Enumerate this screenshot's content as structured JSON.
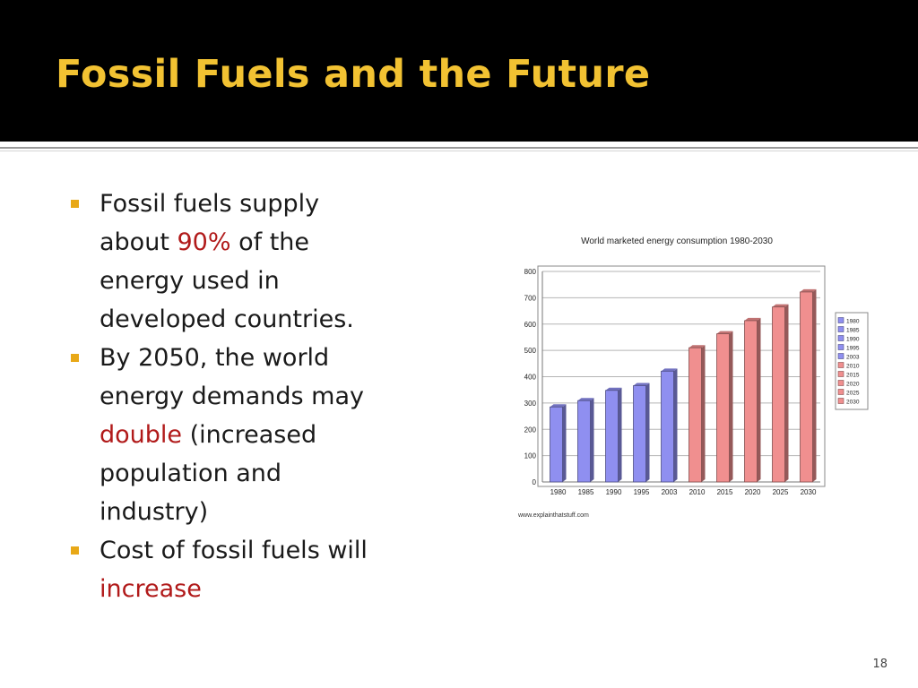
{
  "slide": {
    "title": "Fossil Fuels and the Future",
    "page_number": "18",
    "colors": {
      "title": "#f2c232",
      "highlight": "#b11a1a",
      "bullet_marker": "#e8a817"
    }
  },
  "bullets": [
    {
      "lines": [
        {
          "segments": [
            {
              "text": "Fossil fuels supply"
            }
          ]
        },
        {
          "segments": [
            {
              "text": "about "
            },
            {
              "text": "90%",
              "highlight": true
            },
            {
              "text": " of the"
            }
          ]
        },
        {
          "segments": [
            {
              "text": "energy used in"
            }
          ]
        },
        {
          "segments": [
            {
              "text": "developed countries."
            }
          ]
        }
      ]
    },
    {
      "lines": [
        {
          "segments": [
            {
              "text": "By 2050, the world"
            }
          ]
        },
        {
          "segments": [
            {
              "text": "energy demands may"
            }
          ]
        },
        {
          "segments": [
            {
              "text": "double",
              "highlight": true
            },
            {
              "text": " (increased"
            }
          ]
        },
        {
          "segments": [
            {
              "text": "population and"
            }
          ]
        },
        {
          "segments": [
            {
              "text": "industry)"
            }
          ]
        }
      ]
    },
    {
      "lines": [
        {
          "segments": [
            {
              "text": "Cost of fossil fuels will"
            }
          ]
        },
        {
          "segments": [
            {
              "text": "increase",
              "highlight": true
            }
          ]
        }
      ]
    }
  ],
  "chart_data": {
    "type": "bar",
    "title": "World marketed energy consumption 1980-2030",
    "categories": [
      "1980",
      "1985",
      "1990",
      "1995",
      "2003",
      "2010",
      "2015",
      "2020",
      "2025",
      "2030"
    ],
    "values": [
      285,
      309,
      348,
      366,
      421,
      510,
      563,
      613,
      665,
      722
    ],
    "xlabel": "",
    "ylabel": "",
    "ylim": [
      0,
      800
    ],
    "yticks": [
      0,
      100,
      200,
      300,
      400,
      500,
      600,
      700,
      800
    ],
    "grid": true,
    "legend_position": "right",
    "legend": [
      "1980",
      "1985",
      "1990",
      "1995",
      "2003",
      "2010",
      "2015",
      "2020",
      "2025",
      "2030"
    ],
    "series_colors": [
      "#8f8ff0",
      "#8f8ff0",
      "#8f8ff0",
      "#8f8ff0",
      "#8f8ff0",
      "#f08f8f",
      "#f08f8f",
      "#f08f8f",
      "#f08f8f",
      "#f08f8f"
    ],
    "source": "www.explainthatstuff.com"
  }
}
